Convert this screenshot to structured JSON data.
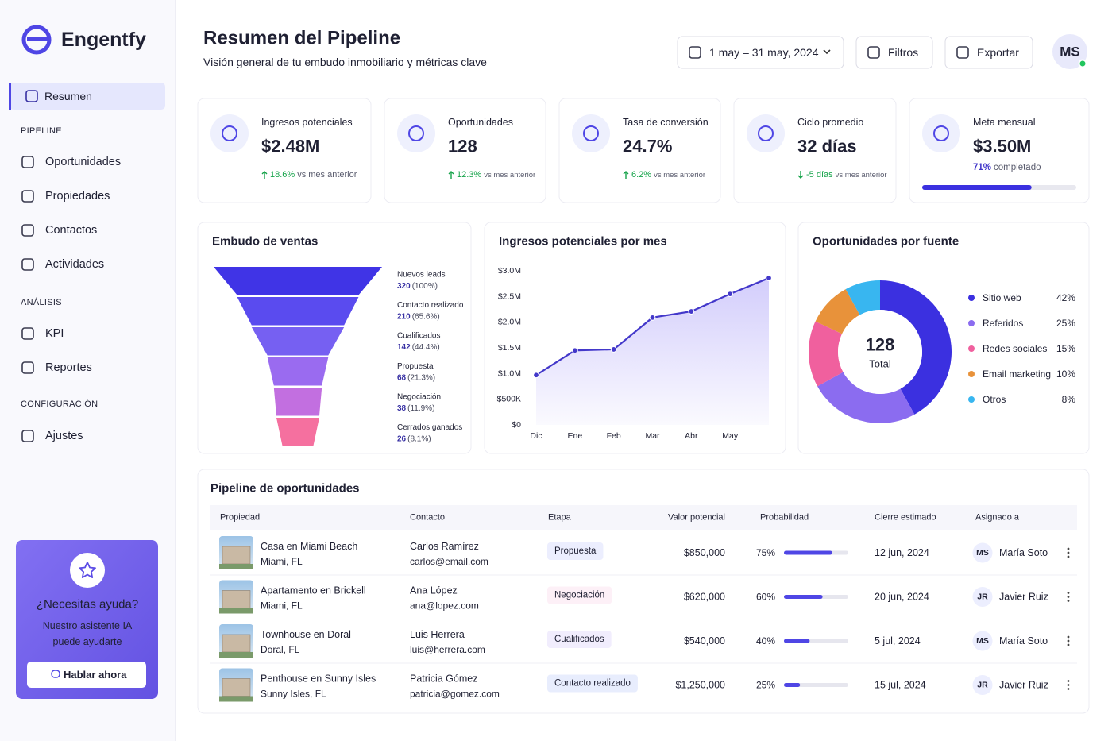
{
  "sidebar": {
    "brand": "Engentfy",
    "active": "Resumen",
    "sections": [
      {
        "title": "PIPELINE",
        "items": [
          "Oportunidades",
          "Propiedades",
          "Contactos",
          "Actividades"
        ]
      },
      {
        "title": "ANÁLISIS",
        "items": [
          "KPI",
          "Reportes"
        ]
      },
      {
        "title": "CONFIGURACIÓN",
        "items": [
          "Ajustes"
        ]
      }
    ],
    "help": {
      "title": "¿Necesitas ayuda?",
      "text": [
        "Nuestro asistente IA",
        "puede ayudarte"
      ],
      "button": "Hablar ahora"
    }
  },
  "header": {
    "title": "Resumen del Pipeline",
    "subtitle": "Visión general de tu embudo inmobiliario y métricas clave",
    "date_range": "1 may – 31 may, 2024",
    "filters": "Filtros",
    "export": "Exportar",
    "avatar": "MS"
  },
  "kpis": [
    {
      "label": "Ingresos potenciales",
      "value": "$2.48M",
      "change": "18.6%",
      "change_text": "vs mes anterior",
      "trend": "up"
    },
    {
      "label": "Oportunidades",
      "value": "128",
      "change": "12.3%",
      "change_text": "vs mes anterior",
      "trend": "up"
    },
    {
      "label": "Tasa de conversión",
      "value": "24.7%",
      "change": "6.2%",
      "change_text": "vs mes anterior",
      "trend": "up"
    },
    {
      "label": "Ciclo promedio",
      "value": "32 días",
      "change": "-5 días",
      "change_text": "vs mes anterior",
      "trend": "down"
    },
    {
      "label": "Meta mensual",
      "value": "$3.50M",
      "progress": 71,
      "progress_label": "71%",
      "progress_text": "completado"
    }
  ],
  "chart_data": [
    {
      "type": "funnel",
      "title": "Embudo de ventas",
      "categories": [
        "Nuevos leads",
        "Contacto realizado",
        "Cualificados",
        "Propuesta",
        "Negociación",
        "Cerrados ganados"
      ],
      "values": [
        320,
        210,
        142,
        68,
        38,
        26
      ],
      "shares": [
        100,
        65.6,
        44.4,
        21.3,
        11.9,
        8.1
      ],
      "share_labels": [
        "(100%)",
        "(65.6%)",
        "(44.4%)",
        "(21.3%)",
        "(11.9%)",
        "(8.1%)"
      ],
      "colors": [
        "#4034e6",
        "#5a4bef",
        "#7660f2",
        "#9a6bf0",
        "#c26fe0",
        "#f5709f"
      ]
    },
    {
      "type": "line",
      "title": "Ingresos potenciales por mes",
      "categories": [
        "Dic",
        "Ene",
        "Feb",
        "Mar",
        "Abr",
        "May",
        null
      ],
      "values": [
        970000,
        1450000,
        1470000,
        2090000,
        2210000,
        2550000,
        2860000
      ],
      "color": "#4338ca",
      "ylim": [
        0,
        3000000
      ],
      "yticks": [
        {
          "value": 0,
          "label": "$0"
        },
        {
          "value": 500000,
          "label": "$500K"
        },
        {
          "value": 1000000,
          "label": "$1.0M"
        },
        {
          "value": 1500000,
          "label": "$1.5M"
        },
        {
          "value": 2000000,
          "label": "$2.0M"
        },
        {
          "value": 2500000,
          "label": "$2.5M"
        },
        {
          "value": 3000000,
          "label": "$3.0M"
        }
      ],
      "grid": false
    },
    {
      "type": "donut",
      "title": "Oportunidades por fuente",
      "center_value": "128",
      "center_label": "Total",
      "categories": [
        "Sitio web",
        "Referidos",
        "Redes sociales",
        "Email marketing",
        "Otros"
      ],
      "values": [
        42,
        25,
        15,
        10,
        8
      ],
      "value_labels": [
        "42%",
        "25%",
        "15%",
        "10%",
        "8%"
      ],
      "colors": [
        "#3b30e0",
        "#8b6cf0",
        "#f0609e",
        "#e8923a",
        "#38b6f0"
      ]
    }
  ],
  "table": {
    "title": "Pipeline de oportunidades",
    "columns": [
      "Propiedad",
      "Contacto",
      "Etapa",
      "Valor potencial",
      "Probabilidad",
      "Cierre estimado",
      "Asignado a"
    ],
    "rows": [
      {
        "property": "Casa en Miami Beach",
        "location": "Miami, FL",
        "contact": "Carlos Ramírez",
        "email": "carlos@email.com",
        "stage": "Propuesta",
        "stage_color": "#4f46e5",
        "stage_bg": "#eceefe",
        "value": "$850,000",
        "probability": 75,
        "probability_label": "75%",
        "close": "12 jun, 2024",
        "initials": "MS",
        "assignee": "María Soto"
      },
      {
        "property": "Apartamento en Brickell",
        "location": "Miami, FL",
        "contact": "Ana López",
        "email": "ana@lopez.com",
        "stage": "Negociación",
        "stage_color": "#c0479a",
        "stage_bg": "#fdf0f7",
        "value": "$620,000",
        "probability": 60,
        "probability_label": "60%",
        "close": "20 jun, 2024",
        "initials": "JR",
        "assignee": "Javier Ruiz"
      },
      {
        "property": "Townhouse en Doral",
        "location": "Doral, FL",
        "contact": "Luis Herrera",
        "email": "luis@herrera.com",
        "stage": "Cualificados",
        "stage_color": "#7c5ce0",
        "stage_bg": "#f1edfd",
        "value": "$540,000",
        "probability": 40,
        "probability_label": "40%",
        "close": "5 jul, 2024",
        "initials": "MS",
        "assignee": "María Soto"
      },
      {
        "property": "Penthouse en Sunny Isles",
        "location": "Sunny Isles, FL",
        "contact": "Patricia Gómez",
        "email": "patricia@gomez.com",
        "stage": "Contacto realizado",
        "stage_color": "#3b4fd8",
        "stage_bg": "#e8edfd",
        "value": "$1,250,000",
        "probability": 25,
        "probability_label": "25%",
        "close": "15 jul, 2024",
        "initials": "JR",
        "assignee": "Javier Ruiz"
      }
    ]
  }
}
